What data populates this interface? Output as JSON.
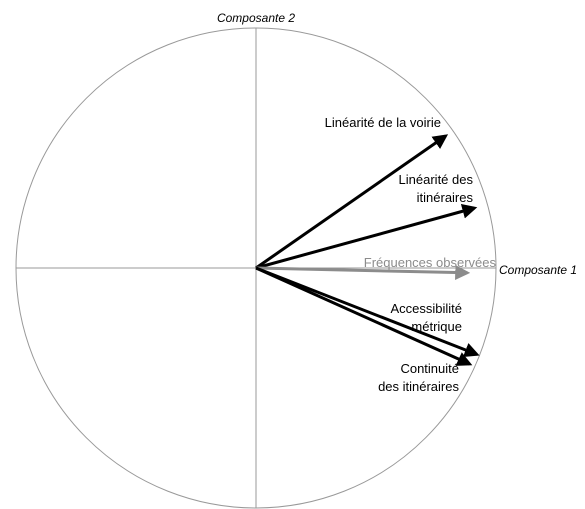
{
  "chart_data": {
    "type": "vector",
    "x_label": "Composante 1",
    "y_label": "Composante 2",
    "xlim": [
      -1,
      1
    ],
    "ylim": [
      -1,
      1
    ],
    "series": [
      {
        "name": [
          "Linéarité de la voirie"
        ],
        "color": "#000000",
        "x": 0.79,
        "y": 0.55
      },
      {
        "name": [
          "Linéarité des",
          "itinéraires"
        ],
        "color": "#000000",
        "x": 0.91,
        "y": 0.25
      },
      {
        "name": [
          "Fréquences observées"
        ],
        "color": "#8c8c8c",
        "x": 0.88,
        "y": -0.02
      },
      {
        "name": [
          "Accessibilité",
          "métrique"
        ],
        "color": "#000000",
        "x": 0.92,
        "y": -0.36
      },
      {
        "name": [
          "Continuité",
          "des itinéraires"
        ],
        "color": "#000000",
        "x": 0.89,
        "y": -0.4
      }
    ]
  }
}
